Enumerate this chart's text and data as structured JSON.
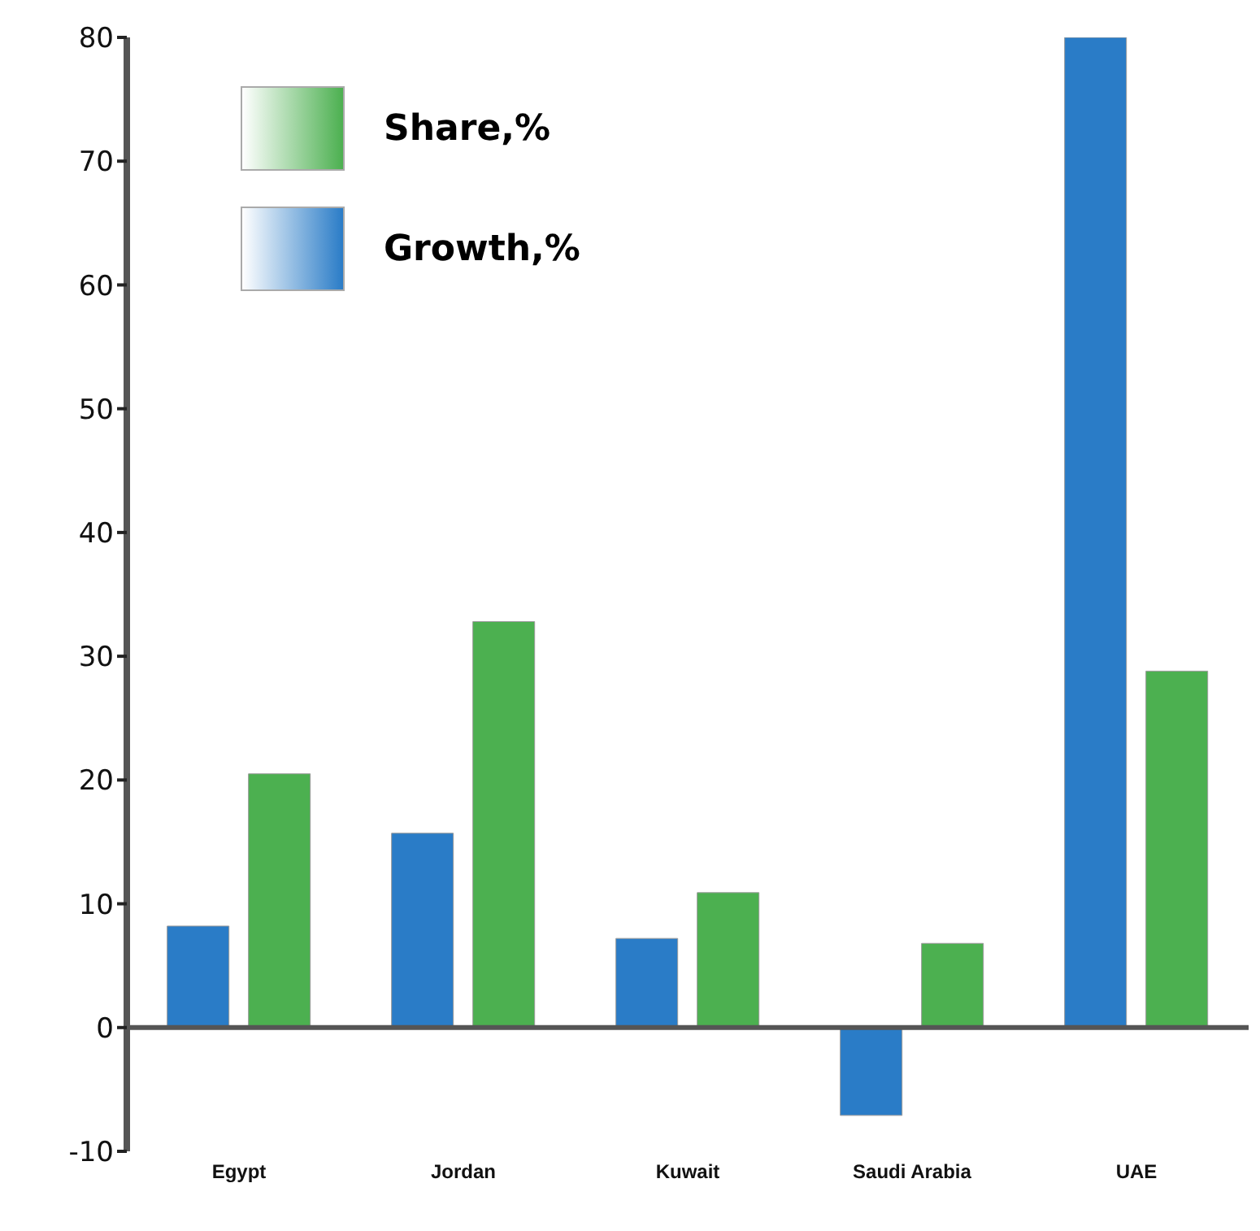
{
  "chart_data": {
    "type": "bar",
    "categories": [
      "Egypt",
      "Jordan",
      "Kuwait",
      "Saudi Arabia",
      "UAE"
    ],
    "series": [
      {
        "name": "Growth,%",
        "color": "#2a7cc7",
        "values": [
          8.2,
          15.7,
          7.2,
          -7.1,
          80
        ]
      },
      {
        "name": "Share,%",
        "color": "#4cb050",
        "values": [
          20.5,
          32.8,
          10.9,
          6.8,
          28.8
        ]
      }
    ],
    "ylim": [
      -10,
      80
    ],
    "yticks": [
      -10,
      0,
      10,
      20,
      30,
      40,
      50,
      60,
      70,
      80
    ],
    "ref_lines": [
      {
        "axis": "y",
        "value": 0,
        "color": "#555555"
      }
    ],
    "grid": false,
    "legend": "top left"
  }
}
